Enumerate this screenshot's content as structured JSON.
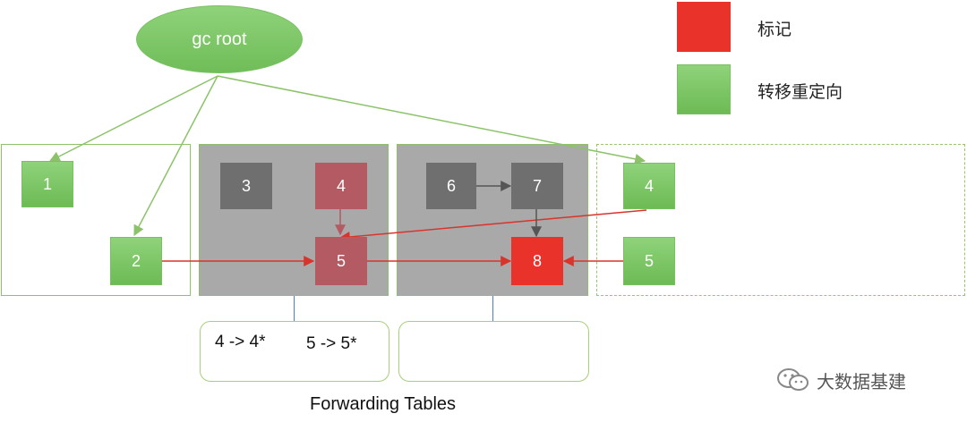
{
  "root": {
    "label": "gc root"
  },
  "legend": [
    {
      "label": "标记",
      "color": "#e8322a"
    },
    {
      "label": "转移重定向",
      "color": "#7cc766"
    }
  ],
  "nodes": {
    "n1": "1",
    "n2": "2",
    "n3": "3",
    "n4a": "4",
    "n5a": "5",
    "n6": "6",
    "n7": "7",
    "n8": "8",
    "n4b": "4",
    "n5b": "5"
  },
  "forwarding": {
    "table1": {
      "entry1": "4 -> 4*",
      "entry2": "5 -> 5*"
    },
    "caption": "Forwarding Tables"
  },
  "watermark": "大数据基建"
}
